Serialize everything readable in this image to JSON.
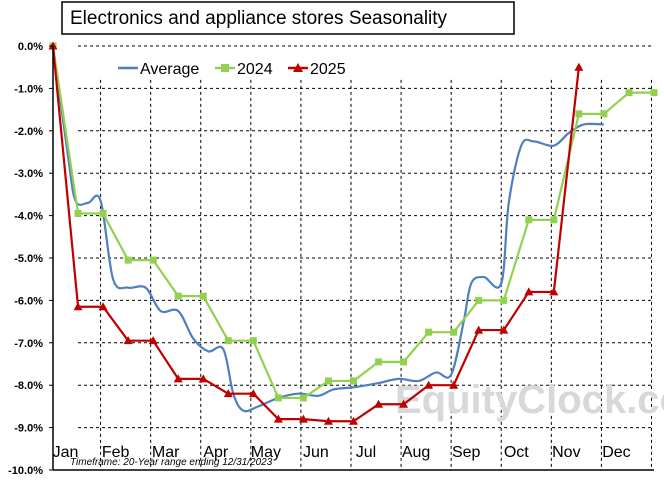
{
  "chart_data": {
    "type": "line",
    "title": "Electronics and appliance stores Seasonality",
    "footnote": "Timeframe: 20-Year range ending 12/31/2023",
    "watermark": "EquityClock.com",
    "months": [
      "Jan",
      "Feb",
      "Mar",
      "Apr",
      "May",
      "Jun",
      "Jul",
      "Aug",
      "Sep",
      "Oct",
      "Nov",
      "Dec"
    ],
    "y_ticks": [
      "0.0%",
      "-1.0%",
      "-2.0%",
      "-3.0%",
      "-4.0%",
      "-5.0%",
      "-6.0%",
      "-7.0%",
      "-8.0%",
      "-9.0%",
      "-10.0%"
    ],
    "ylim": [
      -10,
      0
    ],
    "grid": true,
    "legend_position": "top-left",
    "colors": {
      "average": "#4f7fc0",
      "s2024": "#92d050",
      "s2025": "#c00000"
    },
    "series": [
      {
        "name": "Average",
        "key": "average",
        "marker": "none",
        "points": [
          [
            0.0,
            0.0
          ],
          [
            0.3,
            -2.6
          ],
          [
            0.45,
            -3.65
          ],
          [
            0.7,
            -3.7
          ],
          [
            0.95,
            -3.65
          ],
          [
            1.2,
            -5.5
          ],
          [
            1.5,
            -5.7
          ],
          [
            1.85,
            -5.7
          ],
          [
            2.15,
            -6.25
          ],
          [
            2.5,
            -6.25
          ],
          [
            2.8,
            -6.9
          ],
          [
            3.1,
            -7.2
          ],
          [
            3.4,
            -7.15
          ],
          [
            3.6,
            -8.2
          ],
          [
            3.8,
            -8.6
          ],
          [
            4.1,
            -8.5
          ],
          [
            4.5,
            -8.3
          ],
          [
            4.9,
            -8.2
          ],
          [
            5.3,
            -8.25
          ],
          [
            5.6,
            -8.1
          ],
          [
            6.0,
            -8.05
          ],
          [
            6.5,
            -7.95
          ],
          [
            6.9,
            -7.85
          ],
          [
            7.3,
            -7.9
          ],
          [
            7.65,
            -7.7
          ],
          [
            7.95,
            -7.75
          ],
          [
            8.2,
            -6.5
          ],
          [
            8.35,
            -5.6
          ],
          [
            8.6,
            -5.45
          ],
          [
            8.95,
            -5.6
          ],
          [
            9.1,
            -3.7
          ],
          [
            9.35,
            -2.35
          ],
          [
            9.6,
            -2.25
          ],
          [
            10.0,
            -2.35
          ],
          [
            10.3,
            -2.05
          ],
          [
            10.6,
            -1.85
          ],
          [
            11.0,
            -1.85
          ]
        ]
      },
      {
        "name": "2024",
        "key": "s2024",
        "marker": "square",
        "points": [
          [
            0.0,
            0.0
          ],
          [
            0.5,
            -3.95
          ],
          [
            1.0,
            -3.95
          ],
          [
            1.5,
            -5.05
          ],
          [
            2.0,
            -5.05
          ],
          [
            2.5,
            -5.9
          ],
          [
            3.0,
            -5.9
          ],
          [
            3.5,
            -6.95
          ],
          [
            4.0,
            -6.95
          ],
          [
            4.5,
            -8.3
          ],
          [
            5.0,
            -8.3
          ],
          [
            5.5,
            -7.9
          ],
          [
            6.0,
            -7.9
          ],
          [
            6.5,
            -7.45
          ],
          [
            7.0,
            -7.45
          ],
          [
            7.5,
            -6.75
          ],
          [
            8.0,
            -6.75
          ],
          [
            8.5,
            -6.0
          ],
          [
            9.0,
            -6.0
          ],
          [
            9.5,
            -4.1
          ],
          [
            10.0,
            -4.1
          ],
          [
            10.5,
            -1.6
          ],
          [
            11.0,
            -1.6
          ],
          [
            11.5,
            -1.1
          ],
          [
            12.0,
            -1.1
          ]
        ]
      },
      {
        "name": "2025",
        "key": "s2025",
        "marker": "triangle",
        "points": [
          [
            0.0,
            0.0
          ],
          [
            0.5,
            -6.15
          ],
          [
            1.0,
            -6.15
          ],
          [
            1.5,
            -6.95
          ],
          [
            2.0,
            -6.95
          ],
          [
            2.5,
            -7.85
          ],
          [
            3.0,
            -7.85
          ],
          [
            3.5,
            -8.2
          ],
          [
            4.0,
            -8.2
          ],
          [
            4.5,
            -8.8
          ],
          [
            5.0,
            -8.8
          ],
          [
            5.5,
            -8.85
          ],
          [
            6.0,
            -8.85
          ],
          [
            6.5,
            -8.45
          ],
          [
            7.0,
            -8.45
          ],
          [
            7.5,
            -8.0
          ],
          [
            8.0,
            -8.0
          ],
          [
            8.5,
            -6.7
          ],
          [
            9.0,
            -6.7
          ],
          [
            9.5,
            -5.8
          ],
          [
            10.0,
            -5.8
          ],
          [
            10.5,
            -0.5
          ]
        ]
      }
    ]
  }
}
